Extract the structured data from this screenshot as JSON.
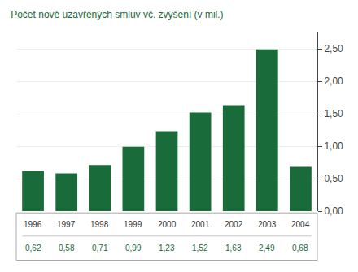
{
  "chart_data": {
    "type": "bar",
    "title": "Počet nově uzavřených smluv vč. zvýšení (v mil.)",
    "categories": [
      "1996",
      "1997",
      "1998",
      "1999",
      "2000",
      "2001",
      "2002",
      "2003",
      "2004"
    ],
    "values": [
      0.62,
      0.58,
      0.71,
      0.99,
      1.23,
      1.52,
      1.63,
      2.49,
      0.68
    ],
    "value_labels": [
      "0,62",
      "0,58",
      "0,71",
      "0,99",
      "1,23",
      "1,52",
      "1,63",
      "2,49",
      "0,68"
    ],
    "data_labels": true,
    "color": "#1a6b3a",
    "ylim": [
      0,
      2.75
    ],
    "yticks": [
      {
        "value": 0.0,
        "label": "0,00"
      },
      {
        "value": 0.5,
        "label": "0,50"
      },
      {
        "value": 1.0,
        "label": "1,00"
      },
      {
        "value": 1.5,
        "label": "1,50"
      },
      {
        "value": 2.0,
        "label": "2,00"
      },
      {
        "value": 2.5,
        "label": "2,50"
      }
    ],
    "grid": true,
    "tick_labels": "y"
  }
}
